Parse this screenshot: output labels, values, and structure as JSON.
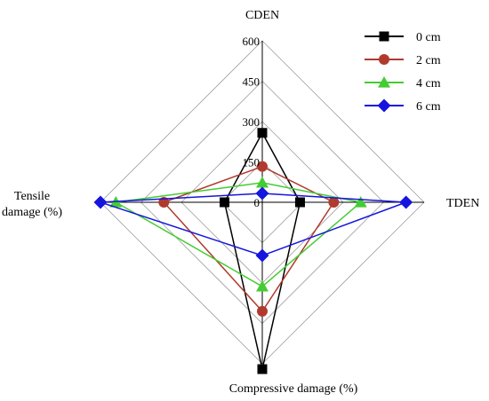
{
  "chart_data": {
    "type": "radar",
    "axes": [
      {
        "key": "top",
        "label": "CDEN"
      },
      {
        "key": "right",
        "label": "TDEN"
      },
      {
        "key": "bottom",
        "label": "Compressive damage (%)"
      },
      {
        "key": "left",
        "label": "Tensile damage (%)",
        "label_lines": [
          "Tensile",
          "damage (%)"
        ]
      }
    ],
    "rlim": [
      0,
      600
    ],
    "ticks": [
      0,
      150,
      300,
      450,
      600
    ],
    "tick_labels": [
      "0",
      "150",
      "300",
      "450",
      "600"
    ],
    "grid": true,
    "legend_position": "top-right",
    "series": [
      {
        "name": "0 cm",
        "color": "#000000",
        "marker": "square",
        "values": [
          258,
          140,
          620,
          140
        ]
      },
      {
        "name": "2 cm",
        "color": "#b03a2e",
        "marker": "circle",
        "values": [
          133,
          265,
          405,
          365
        ]
      },
      {
        "name": "4 cm",
        "color": "#44cc33",
        "marker": "triangle",
        "values": [
          73,
          365,
          313,
          543
        ]
      },
      {
        "name": "6 cm",
        "color": "#1515dd",
        "marker": "diamond",
        "values": [
          33,
          533,
          198,
          600
        ]
      }
    ]
  }
}
